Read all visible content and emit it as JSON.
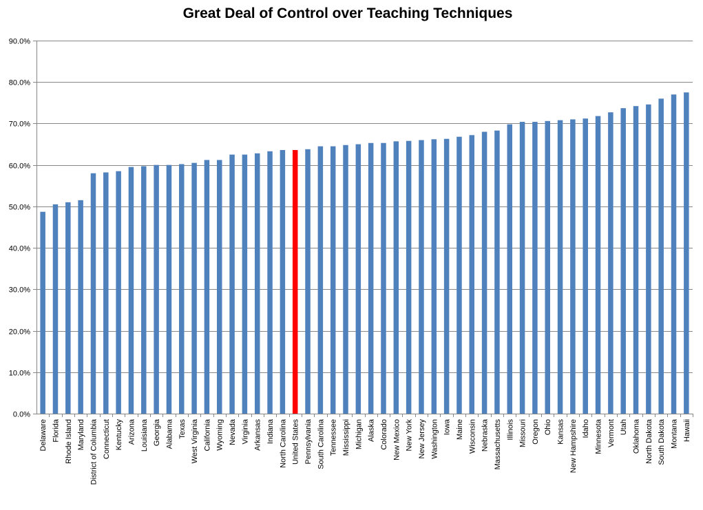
{
  "chart_data": {
    "type": "bar",
    "title": "Great Deal of Control over Teaching Techniques",
    "xlabel": "",
    "ylabel": "",
    "ylim": [
      0,
      90
    ],
    "ytick_values": [
      0,
      10,
      20,
      30,
      40,
      50,
      60,
      70,
      80,
      90
    ],
    "ytick_labels": [
      "0.0%",
      "10.0%",
      "20.0%",
      "30.0%",
      "40.0%",
      "50.0%",
      "60.0%",
      "70.0%",
      "80.0%",
      "90.0%"
    ],
    "grid": "horizontal",
    "legend": "none",
    "categories": [
      "Delaware",
      "Florida",
      "Rhode Island",
      "Maryland",
      "District of Columbia",
      "Connecticut",
      "Kentucky",
      "Arizona",
      "Louisiana",
      "Georgia",
      "Alabama",
      "Texas",
      "West Virginia",
      "California",
      "Wyoming",
      "Nevada",
      "Virginia",
      "Arkansas",
      "Indiana",
      "North Carolina",
      "United States",
      "Pennsylvania",
      "South Carolina",
      "Tennessee",
      "Mississippi",
      "Michigan",
      "Alaska",
      "Colorado",
      "New Mexico",
      "New York",
      "New Jersey",
      "Washington",
      "Iowa",
      "Maine",
      "Wisconsin",
      "Nebraska",
      "Massachusetts",
      "Illinois",
      "Missouri",
      "Oregon",
      "Ohio",
      "Kansas",
      "New Hampshire",
      "Idaho",
      "Minnesota",
      "Vermont",
      "Utah",
      "Oklahoma",
      "North Dakota",
      "South Dakota",
      "Montana",
      "Hawaii"
    ],
    "values": [
      48.7,
      50.5,
      51.0,
      51.5,
      58.0,
      58.2,
      58.5,
      59.5,
      59.7,
      60.0,
      60.0,
      60.2,
      60.5,
      61.2,
      61.2,
      62.5,
      62.5,
      62.8,
      63.3,
      63.6,
      63.6,
      63.8,
      64.5,
      64.5,
      64.8,
      65.0,
      65.3,
      65.3,
      65.7,
      65.8,
      66.0,
      66.2,
      66.3,
      66.8,
      67.2,
      68.0,
      68.3,
      69.8,
      70.4,
      70.4,
      70.6,
      70.8,
      71.0,
      71.2,
      71.8,
      72.7,
      73.7,
      74.2,
      74.6,
      76.0,
      77.0,
      77.5
    ],
    "colors": {
      "default": "#4f81bd",
      "highlight": "#ff0000",
      "highlight_category": "United States",
      "grid": "#868686",
      "axis": "#868686"
    }
  }
}
